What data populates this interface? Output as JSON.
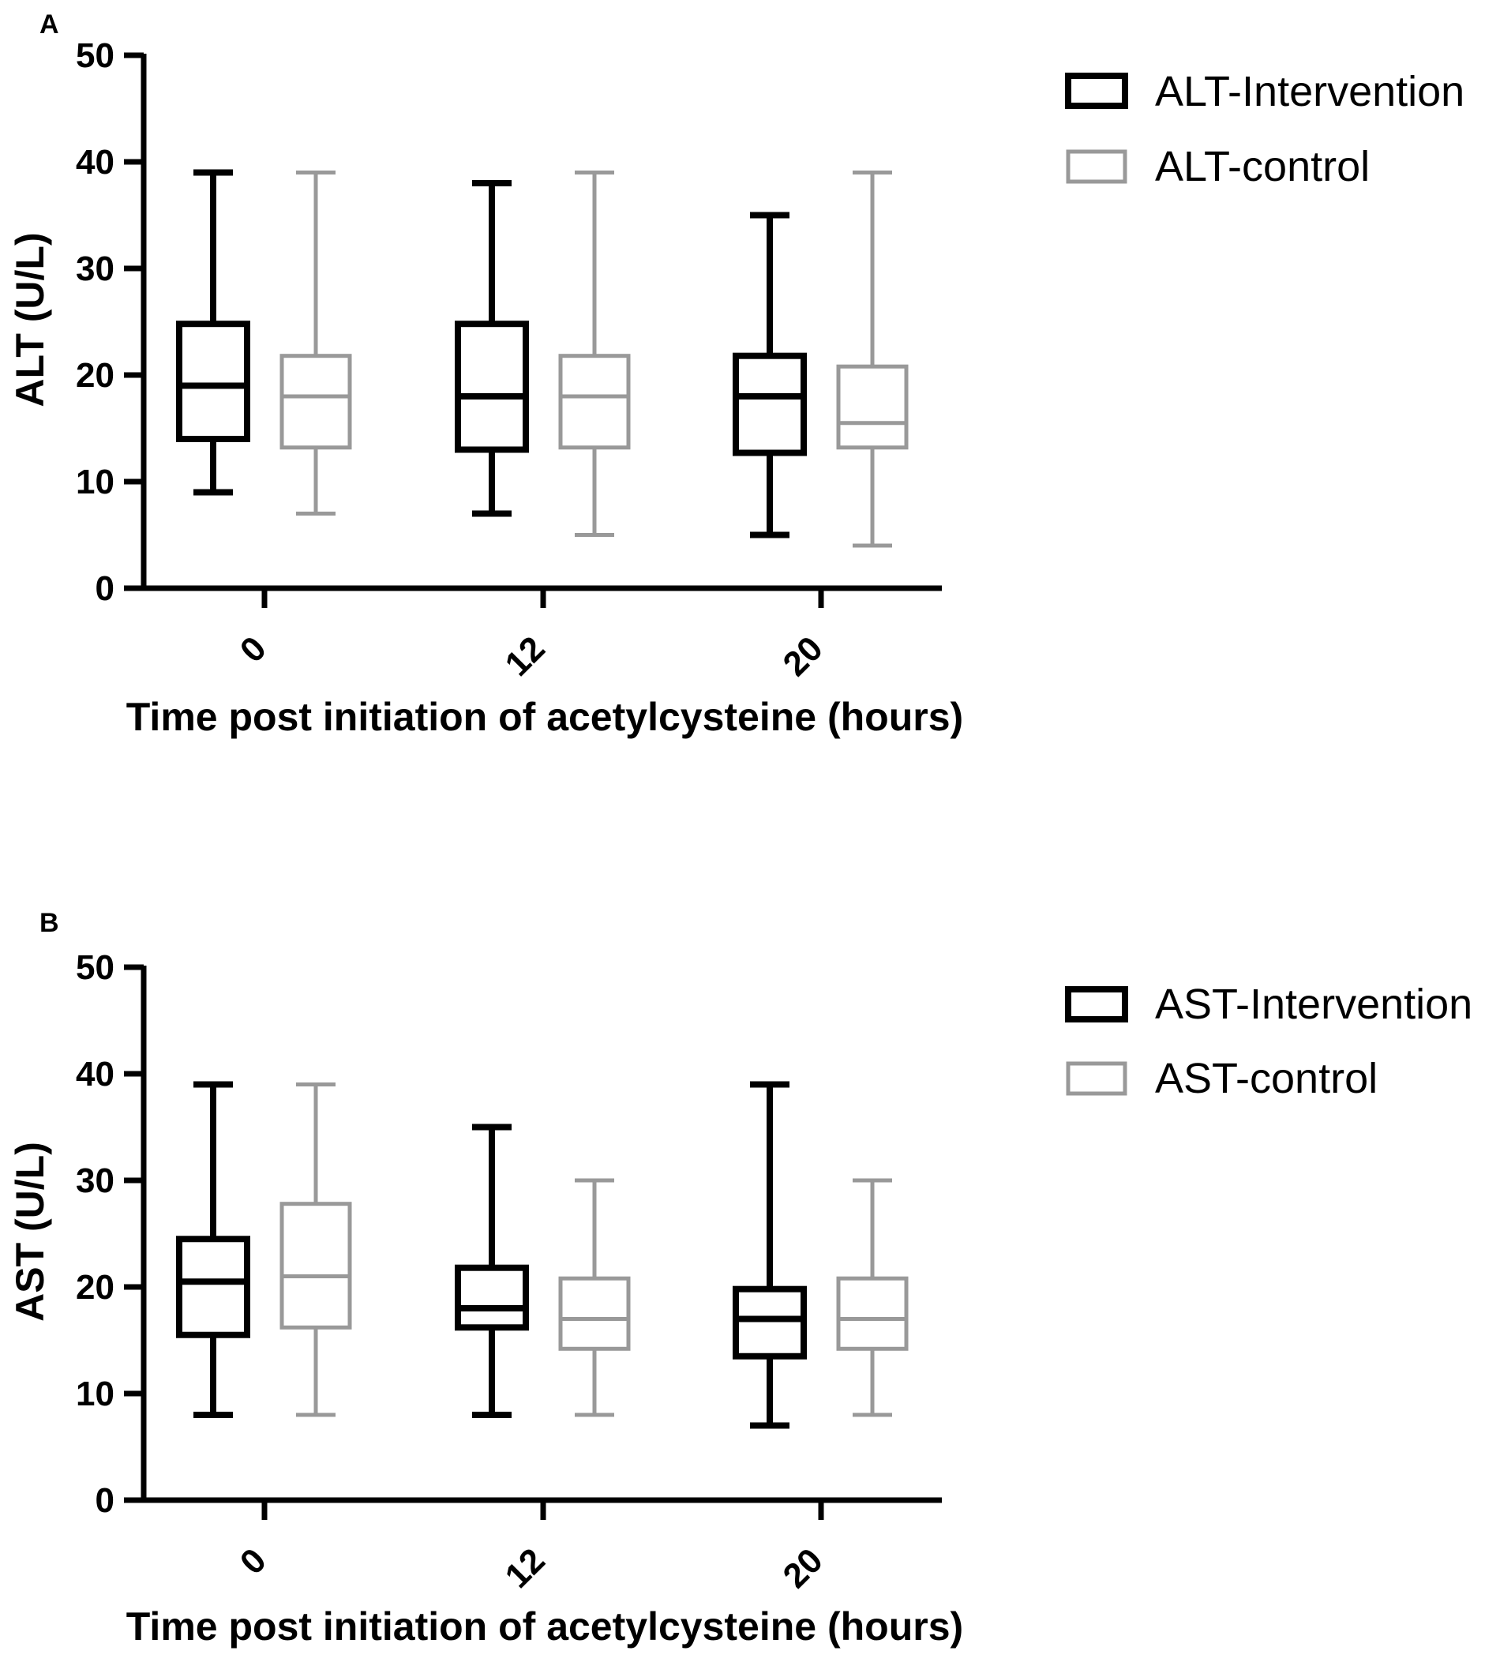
{
  "chart_data": [
    {
      "panel": "A",
      "type": "box",
      "xlabel": "Time post initiation of acetylcysteine (hours)",
      "ylabel": "ALT (U/L)",
      "ylim": [
        0,
        50
      ],
      "yticks": [
        "0",
        "10",
        "20",
        "30",
        "40",
        "50"
      ],
      "categories": [
        "0",
        "12",
        "20"
      ],
      "grid": false,
      "legend_position": "top-right",
      "series": [
        {
          "name": "ALT-Intervention",
          "color": "#000000",
          "boxes": [
            {
              "min": 9,
              "q1": 14,
              "median": 19,
              "q3": 24.8,
              "max": 39
            },
            {
              "min": 7,
              "q1": 13,
              "median": 18,
              "q3": 24.8,
              "max": 38
            },
            {
              "min": 5,
              "q1": 12.7,
              "median": 18,
              "q3": 21.8,
              "max": 35
            }
          ]
        },
        {
          "name": "ALT-control",
          "color": "#999999",
          "boxes": [
            {
              "min": 7,
              "q1": 13.2,
              "median": 18,
              "q3": 21.8,
              "max": 39
            },
            {
              "min": 5,
              "q1": 13.2,
              "median": 18,
              "q3": 21.8,
              "max": 39
            },
            {
              "min": 4,
              "q1": 13.2,
              "median": 15.5,
              "q3": 20.8,
              "max": 39
            }
          ]
        }
      ]
    },
    {
      "panel": "B",
      "type": "box",
      "xlabel": "Time post initiation of acetylcysteine (hours)",
      "ylabel": "AST (U/L)",
      "ylim": [
        0,
        50
      ],
      "yticks": [
        "0",
        "10",
        "20",
        "30",
        "40",
        "50"
      ],
      "categories": [
        "0",
        "12",
        "20"
      ],
      "grid": false,
      "legend_position": "top-right",
      "series": [
        {
          "name": "AST-Intervention",
          "color": "#000000",
          "boxes": [
            {
              "min": 8,
              "q1": 15.5,
              "median": 20.5,
              "q3": 24.5,
              "max": 39
            },
            {
              "min": 8,
              "q1": 16.2,
              "median": 18,
              "q3": 21.8,
              "max": 35
            },
            {
              "min": 7,
              "q1": 13.5,
              "median": 17,
              "q3": 19.8,
              "max": 39
            }
          ]
        },
        {
          "name": "AST-control",
          "color": "#999999",
          "boxes": [
            {
              "min": 8,
              "q1": 16.2,
              "median": 21,
              "q3": 27.8,
              "max": 39
            },
            {
              "min": 8,
              "q1": 14.2,
              "median": 17,
              "q3": 20.8,
              "max": 30
            },
            {
              "min": 8,
              "q1": 14.2,
              "median": 17,
              "q3": 20.8,
              "max": 30
            }
          ]
        }
      ]
    }
  ]
}
